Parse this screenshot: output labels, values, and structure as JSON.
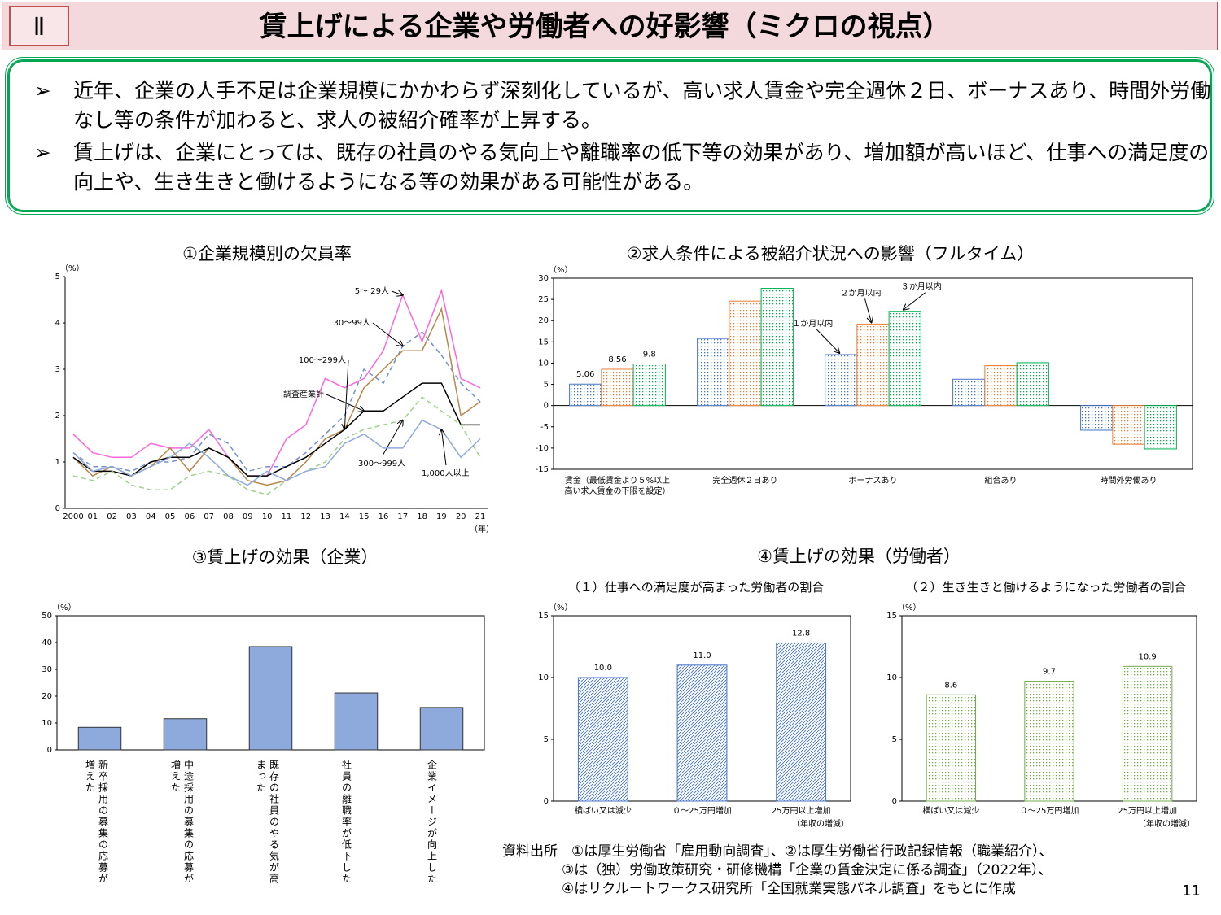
{
  "header": {
    "section": "Ⅱ",
    "title": "賃上げによる企業や労働者への好影響（ミクロの視点）"
  },
  "bullets": [
    "近年、企業の人手不足は企業規模にかかわらず深刻化しているが、高い求人賃金や完全週休２日、ボーナスあり、時間外労働なし等の条件が加わると、求人の被紹介確率が上昇する。",
    "賃上げは、企業にとっては、既存の社員のやる気向上や離職率の低下等の効果があり、増加額が高いほど、仕事への満足度の向上や、生き生きと働けるようになる等の効果がある可能性がある。"
  ],
  "section4_title": "④賃上げの効果（労働者）",
  "chart_data": [
    {
      "type": "line",
      "title": "①企業規模別の欠員率",
      "y_label": "（%）",
      "x_label": "（年）",
      "categories": [
        "2000",
        "01",
        "02",
        "03",
        "04",
        "05",
        "06",
        "07",
        "08",
        "09",
        "10",
        "11",
        "12",
        "13",
        "14",
        "15",
        "16",
        "17",
        "18",
        "19",
        "20",
        "21"
      ],
      "ylim": [
        0,
        5
      ],
      "yticks": [
        0,
        1,
        2,
        3,
        4,
        5
      ],
      "series": [
        {
          "name": "5〜 29人",
          "color": "#ff66dd",
          "dash": false,
          "values": [
            1.6,
            1.2,
            1.1,
            1.1,
            1.4,
            1.3,
            1.3,
            1.7,
            1.1,
            0.7,
            0.7,
            1.5,
            1.8,
            2.8,
            2.6,
            2.8,
            3.4,
            4.6,
            3.6,
            4.7,
            2.8,
            2.6
          ]
        },
        {
          "name": "30〜99人",
          "color": "#6f8fd0",
          "dash": true,
          "values": [
            1.2,
            0.9,
            0.9,
            0.8,
            1.0,
            1.0,
            1.1,
            1.6,
            1.4,
            0.8,
            0.9,
            0.9,
            1.2,
            1.6,
            2.0,
            3.0,
            2.7,
            3.5,
            3.8,
            3.3,
            2.7,
            2.3
          ]
        },
        {
          "name": "100〜299人",
          "color": "#b8864b",
          "dash": false,
          "values": [
            1.1,
            0.7,
            0.9,
            0.7,
            0.9,
            1.3,
            0.8,
            1.3,
            1.1,
            0.6,
            0.5,
            0.6,
            1.0,
            1.5,
            1.7,
            2.6,
            3.0,
            3.4,
            3.4,
            4.3,
            2.0,
            2.3
          ]
        },
        {
          "name": "調査産業計",
          "color": "#000000",
          "dash": false,
          "values": [
            1.1,
            0.8,
            0.8,
            0.7,
            1.0,
            1.1,
            1.1,
            1.3,
            1.1,
            0.7,
            0.7,
            0.9,
            1.1,
            1.4,
            1.7,
            2.1,
            2.1,
            2.4,
            2.7,
            2.7,
            1.8,
            1.8
          ]
        },
        {
          "name": "300〜999人",
          "color": "#a0d08a",
          "dash": true,
          "values": [
            0.7,
            0.6,
            0.8,
            0.5,
            0.4,
            0.4,
            0.7,
            0.8,
            0.7,
            0.4,
            0.3,
            0.6,
            0.8,
            1.0,
            1.5,
            1.7,
            1.8,
            1.9,
            2.4,
            2.1,
            1.8,
            1.1
          ]
        },
        {
          "name": "1,000人以上",
          "color": "#8eaadb",
          "dash": false,
          "values": [
            1.2,
            0.8,
            0.9,
            0.7,
            0.9,
            1.1,
            1.4,
            1.1,
            0.7,
            0.5,
            0.8,
            0.6,
            0.8,
            0.9,
            1.4,
            1.6,
            1.3,
            1.3,
            1.9,
            1.7,
            1.1,
            1.5
          ]
        }
      ]
    },
    {
      "type": "bar",
      "title": "②求人条件による被紹介状況への影響（フルタイム）",
      "y_label": "（%）",
      "categories": [
        "賃金（最低賃金より５%以上高い求人賃金の下限を設定）",
        "完全週休２日あり",
        "ボーナスあり",
        "組合あり",
        "時間外労働あり"
      ],
      "ylim": [
        -15,
        30
      ],
      "yticks": [
        -15,
        -10,
        -5,
        0,
        5,
        10,
        15,
        20,
        25,
        30
      ],
      "series": [
        {
          "name": "１か月以内",
          "color": "#4472c4",
          "pattern": "dots",
          "values": [
            5.06,
            15.8,
            12,
            6.2,
            -5.8
          ],
          "value_labels": [
            "5.06",
            null,
            null,
            null,
            null
          ]
        },
        {
          "name": "２か月以内",
          "color": "#ed7d31",
          "pattern": "dots",
          "values": [
            8.56,
            24.6,
            19.2,
            9.4,
            -9.1
          ],
          "value_labels": [
            "8.56",
            null,
            null,
            null,
            null
          ]
        },
        {
          "name": "３か月以内",
          "color": "#00b050",
          "pattern": "dots",
          "values": [
            9.8,
            27.6,
            22.2,
            10.1,
            -10.2
          ],
          "value_labels": [
            "9.8",
            null,
            null,
            null,
            null
          ]
        }
      ]
    },
    {
      "type": "bar",
      "title": "③賃上げの効果（企業）",
      "y_label": "（%）",
      "categories": [
        "新卒採用の募集の応募が増えた",
        "中途採用の募集の応募が増えた",
        "既存の社員のやる気が高まった",
        "社員の離職率が低下した",
        "企業イメージが向上した"
      ],
      "ylim": [
        0,
        50
      ],
      "yticks": [
        0,
        10,
        20,
        30,
        40,
        50
      ],
      "series": [
        {
          "color": "#8ea9db",
          "pattern": "solid",
          "values": [
            8.4,
            11.6,
            38.5,
            21.2,
            15.8
          ]
        }
      ]
    },
    {
      "type": "bar",
      "title": "（１）仕事への満足度が高まった労働者の割合",
      "y_label": "（%）",
      "x_label": "（年収の増減）",
      "categories": [
        "横ばい又は減少",
        "０〜25万円増加",
        "25万円以上増加"
      ],
      "ylim": [
        0,
        15
      ],
      "yticks": [
        0,
        5,
        10,
        15
      ],
      "series": [
        {
          "color": "#4472c4",
          "pattern": "hatch",
          "values": [
            10.0,
            11.0,
            12.8
          ],
          "value_labels": [
            "10.0",
            "11.0",
            "12.8"
          ]
        }
      ]
    },
    {
      "type": "bar",
      "title": "（２）生き生きと働けるようになった労働者の割合",
      "y_label": "（%）",
      "x_label": "（年収の増減）",
      "categories": [
        "横ばい又は減少",
        "０〜25万円増加",
        "25万円以上増加"
      ],
      "ylim": [
        0,
        15
      ],
      "yticks": [
        0,
        5,
        10,
        15
      ],
      "series": [
        {
          "color": "#70ad47",
          "pattern": "dots",
          "values": [
            8.6,
            9.7,
            10.9
          ],
          "value_labels": [
            "8.6",
            "9.7",
            "10.9"
          ]
        }
      ]
    }
  ],
  "source": [
    "資料出所　①は厚生労働省「雇用動向調査」、②は厚生労働省行政記録情報（職業紹介）、",
    "③は（独）労働政策研究・研修機構「企業の賃金決定に係る調査」（2022年）、",
    "④はリクルートワークス研究所「全国就業実態パネル調査」をもとに作成"
  ],
  "page_number": "11"
}
